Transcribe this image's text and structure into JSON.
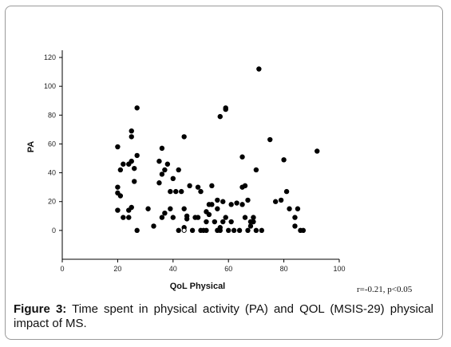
{
  "chart_data": {
    "type": "scatter",
    "xlabel": "QoL Physical",
    "ylabel": "PA",
    "xlim": [
      0,
      100
    ],
    "ylim": [
      -20,
      125
    ],
    "xticks": [
      0,
      20,
      40,
      60,
      80,
      100
    ],
    "yticks": [
      0,
      20,
      40,
      60,
      80,
      100,
      120
    ],
    "grid": false,
    "points": [
      {
        "x": 20,
        "y": 58
      },
      {
        "x": 20,
        "y": 30
      },
      {
        "x": 20,
        "y": 26
      },
      {
        "x": 21,
        "y": 24
      },
      {
        "x": 20,
        "y": 14
      },
      {
        "x": 21,
        "y": 42
      },
      {
        "x": 22,
        "y": 46
      },
      {
        "x": 22,
        "y": 9
      },
      {
        "x": 24,
        "y": 46
      },
      {
        "x": 25,
        "y": 48
      },
      {
        "x": 24,
        "y": 14
      },
      {
        "x": 24,
        "y": 9
      },
      {
        "x": 25,
        "y": 16
      },
      {
        "x": 25,
        "y": 69
      },
      {
        "x": 25,
        "y": 65
      },
      {
        "x": 26,
        "y": 43
      },
      {
        "x": 26,
        "y": 34
      },
      {
        "x": 27,
        "y": 52
      },
      {
        "x": 27,
        "y": 85
      },
      {
        "x": 27,
        "y": 0
      },
      {
        "x": 31,
        "y": 15
      },
      {
        "x": 33,
        "y": 3
      },
      {
        "x": 35,
        "y": 33
      },
      {
        "x": 35,
        "y": 48
      },
      {
        "x": 36,
        "y": 57
      },
      {
        "x": 36,
        "y": 39
      },
      {
        "x": 37,
        "y": 42
      },
      {
        "x": 38,
        "y": 46
      },
      {
        "x": 36,
        "y": 9
      },
      {
        "x": 37,
        "y": 12
      },
      {
        "x": 39,
        "y": 27
      },
      {
        "x": 39,
        "y": 15
      },
      {
        "x": 40,
        "y": 36
      },
      {
        "x": 40,
        "y": 9
      },
      {
        "x": 41,
        "y": 27
      },
      {
        "x": 42,
        "y": 42
      },
      {
        "x": 42,
        "y": 0
      },
      {
        "x": 43,
        "y": 27
      },
      {
        "x": 44,
        "y": 65
      },
      {
        "x": 44,
        "y": 15
      },
      {
        "x": 44,
        "y": 2
      },
      {
        "x": 45,
        "y": 10
      },
      {
        "x": 45,
        "y": 8
      },
      {
        "x": 46,
        "y": 31
      },
      {
        "x": 47,
        "y": 0
      },
      {
        "x": 48,
        "y": 9
      },
      {
        "x": 49,
        "y": 9
      },
      {
        "x": 49,
        "y": 30
      },
      {
        "x": 50,
        "y": 27
      },
      {
        "x": 50,
        "y": 0
      },
      {
        "x": 51,
        "y": 0
      },
      {
        "x": 52,
        "y": 13
      },
      {
        "x": 52,
        "y": 6
      },
      {
        "x": 52,
        "y": 0
      },
      {
        "x": 53,
        "y": 18
      },
      {
        "x": 53,
        "y": 11
      },
      {
        "x": 54,
        "y": 31
      },
      {
        "x": 54,
        "y": 18
      },
      {
        "x": 55,
        "y": 6
      },
      {
        "x": 56,
        "y": 21
      },
      {
        "x": 56,
        "y": 15
      },
      {
        "x": 56,
        "y": 0
      },
      {
        "x": 57,
        "y": 79
      },
      {
        "x": 57,
        "y": 2
      },
      {
        "x": 57,
        "y": 0
      },
      {
        "x": 58,
        "y": 20
      },
      {
        "x": 58,
        "y": 6
      },
      {
        "x": 59,
        "y": 85
      },
      {
        "x": 59,
        "y": 84
      },
      {
        "x": 59,
        "y": 9
      },
      {
        "x": 60,
        "y": 0
      },
      {
        "x": 61,
        "y": 18
      },
      {
        "x": 61,
        "y": 6
      },
      {
        "x": 62,
        "y": 0
      },
      {
        "x": 63,
        "y": 19
      },
      {
        "x": 64,
        "y": 0
      },
      {
        "x": 65,
        "y": 51
      },
      {
        "x": 65,
        "y": 30
      },
      {
        "x": 65,
        "y": 18
      },
      {
        "x": 66,
        "y": 31
      },
      {
        "x": 66,
        "y": 9
      },
      {
        "x": 67,
        "y": 21
      },
      {
        "x": 67,
        "y": 0
      },
      {
        "x": 68,
        "y": 6
      },
      {
        "x": 68,
        "y": 3
      },
      {
        "x": 69,
        "y": 9
      },
      {
        "x": 69,
        "y": 6
      },
      {
        "x": 70,
        "y": 42
      },
      {
        "x": 70,
        "y": 0
      },
      {
        "x": 71,
        "y": 112
      },
      {
        "x": 72,
        "y": 0
      },
      {
        "x": 75,
        "y": 63
      },
      {
        "x": 77,
        "y": 20
      },
      {
        "x": 79,
        "y": 21
      },
      {
        "x": 80,
        "y": 49
      },
      {
        "x": 81,
        "y": 27
      },
      {
        "x": 82,
        "y": 15
      },
      {
        "x": 84,
        "y": 9
      },
      {
        "x": 84,
        "y": 3
      },
      {
        "x": 85,
        "y": 15
      },
      {
        "x": 86,
        "y": 0
      },
      {
        "x": 87,
        "y": 0
      },
      {
        "x": 92,
        "y": 55
      }
    ],
    "open_points": [
      {
        "x": 44,
        "y": 0
      }
    ]
  },
  "annotation": "r=-0.21, p<0.05",
  "caption": {
    "label": "Figure 3:",
    "text": " Time spent in physical activity (PA) and QOL (MSIS-29) physical impact of MS."
  },
  "colors": {
    "marker": "#000000",
    "axis": "#000000",
    "frame": "#9a9a9a"
  }
}
